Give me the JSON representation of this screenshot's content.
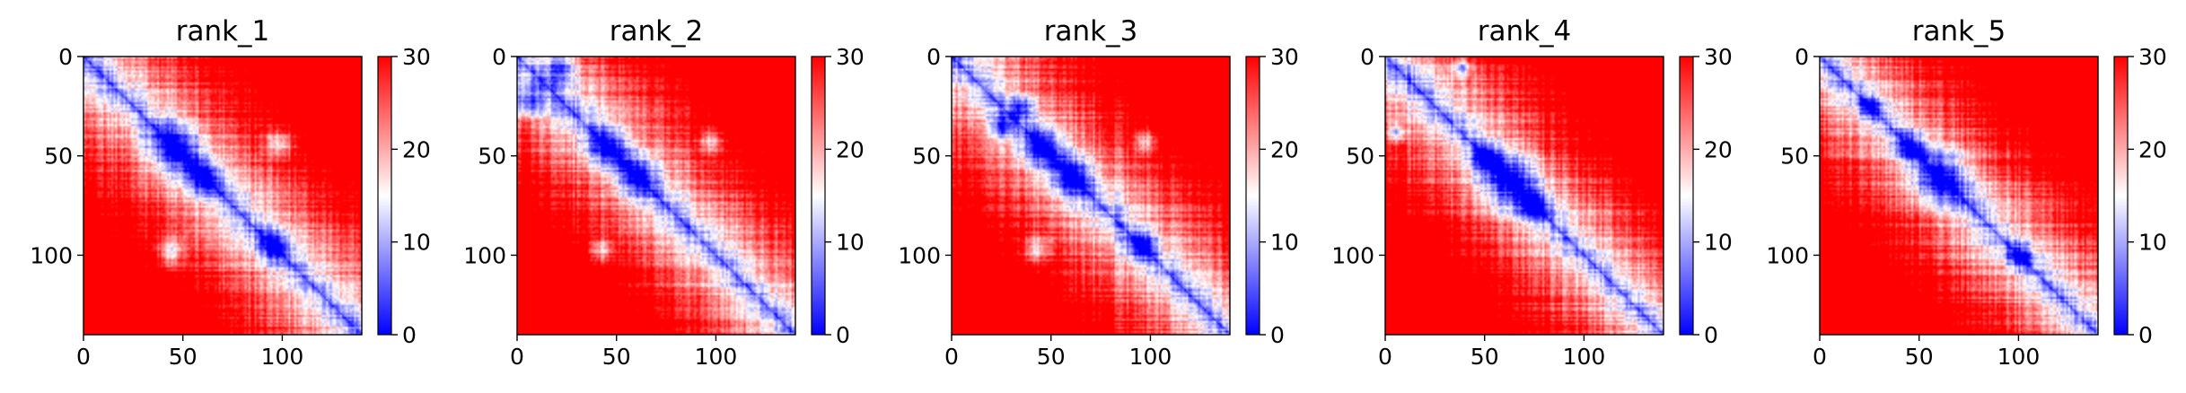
{
  "chart_data": [
    {
      "type": "heatmap",
      "title": "rank_1",
      "xticks": [
        "0",
        "50",
        "100"
      ],
      "yticks": [
        "0",
        "50",
        "100"
      ],
      "colorbar_ticks": [
        "0",
        "10",
        "20",
        "30"
      ],
      "value_range": [
        0,
        30
      ],
      "matrix_size": 140,
      "colormap": "bwr",
      "blue_regions": [
        {
          "i": 45,
          "j": 45,
          "r": 9
        },
        {
          "i": 60,
          "j": 60,
          "r": 6
        },
        {
          "i": 43,
          "j": 98,
          "r": 5
        },
        {
          "i": 98,
          "j": 43,
          "r": 5
        },
        {
          "i": 95,
          "j": 95,
          "r": 5
        }
      ]
    },
    {
      "type": "heatmap",
      "title": "rank_2",
      "xticks": [
        "0",
        "50",
        "100"
      ],
      "yticks": [
        "0",
        "50",
        "100"
      ],
      "colorbar_ticks": [
        "0",
        "10",
        "20",
        "30"
      ],
      "value_range": [
        0,
        30
      ],
      "matrix_size": 140,
      "colormap": "bwr",
      "blue_regions": [
        {
          "i": 22,
          "j": 5,
          "r": 5
        },
        {
          "i": 5,
          "j": 22,
          "r": 5
        },
        {
          "i": 45,
          "j": 45,
          "r": 7
        },
        {
          "i": 60,
          "j": 60,
          "r": 7
        },
        {
          "i": 42,
          "j": 97,
          "r": 4
        },
        {
          "i": 97,
          "j": 42,
          "r": 4
        }
      ]
    },
    {
      "type": "heatmap",
      "title": "rank_3",
      "xticks": [
        "0",
        "50",
        "100"
      ],
      "yticks": [
        "0",
        "50",
        "100"
      ],
      "colorbar_ticks": [
        "0",
        "10",
        "20",
        "30"
      ],
      "value_range": [
        0,
        30
      ],
      "matrix_size": 140,
      "colormap": "bwr",
      "blue_regions": [
        {
          "i": 25,
          "j": 35,
          "r": 4
        },
        {
          "i": 35,
          "j": 25,
          "r": 4
        },
        {
          "i": 45,
          "j": 45,
          "r": 7
        },
        {
          "i": 60,
          "j": 60,
          "r": 7
        },
        {
          "i": 42,
          "j": 97,
          "r": 4
        },
        {
          "i": 97,
          "j": 42,
          "r": 5
        },
        {
          "i": 95,
          "j": 95,
          "r": 5
        }
      ]
    },
    {
      "type": "heatmap",
      "title": "rank_4",
      "xticks": [
        "0",
        "50",
        "100"
      ],
      "yticks": [
        "0",
        "50",
        "100"
      ],
      "colorbar_ticks": [
        "0",
        "10",
        "20",
        "30"
      ],
      "value_range": [
        0,
        30
      ],
      "matrix_size": 140,
      "colormap": "bwr",
      "blue_regions": [
        {
          "i": 62,
          "j": 62,
          "r": 10
        },
        {
          "i": 50,
          "j": 50,
          "r": 5
        },
        {
          "i": 75,
          "j": 75,
          "r": 5
        },
        {
          "i": 38,
          "j": 5,
          "r": 3
        },
        {
          "i": 5,
          "j": 38,
          "r": 3
        }
      ]
    },
    {
      "type": "heatmap",
      "title": "rank_5",
      "xticks": [
        "0",
        "50",
        "100"
      ],
      "yticks": [
        "0",
        "50",
        "100"
      ],
      "colorbar_ticks": [
        "0",
        "10",
        "20",
        "30"
      ],
      "value_range": [
        0,
        30
      ],
      "matrix_size": 140,
      "colormap": "bwr",
      "blue_regions": [
        {
          "i": 60,
          "j": 60,
          "r": 9
        },
        {
          "i": 45,
          "j": 45,
          "r": 5
        },
        {
          "i": 100,
          "j": 100,
          "r": 4
        },
        {
          "i": 25,
          "j": 25,
          "r": 4
        }
      ]
    }
  ]
}
